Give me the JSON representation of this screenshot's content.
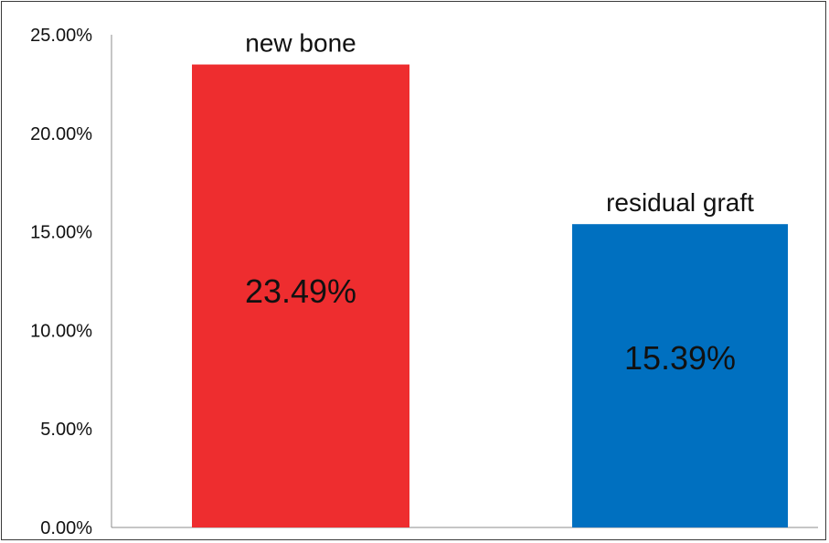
{
  "chart_data": {
    "type": "bar",
    "categories": [
      "new bone",
      "residual graft"
    ],
    "values": [
      23.49,
      15.39
    ],
    "value_labels": [
      "23.49%",
      "15.39%"
    ],
    "colors": [
      "#ee2d2f",
      "#0070c0"
    ],
    "ylim": [
      0,
      25
    ],
    "yticks": [
      0,
      5,
      10,
      15,
      20,
      25
    ],
    "ytick_labels": [
      "0.00%",
      "5.00%",
      "10.00%",
      "15.00%",
      "20.00%",
      "25.00%"
    ],
    "grid": false,
    "legend": "none",
    "title": "",
    "xlabel": "",
    "ylabel": ""
  }
}
